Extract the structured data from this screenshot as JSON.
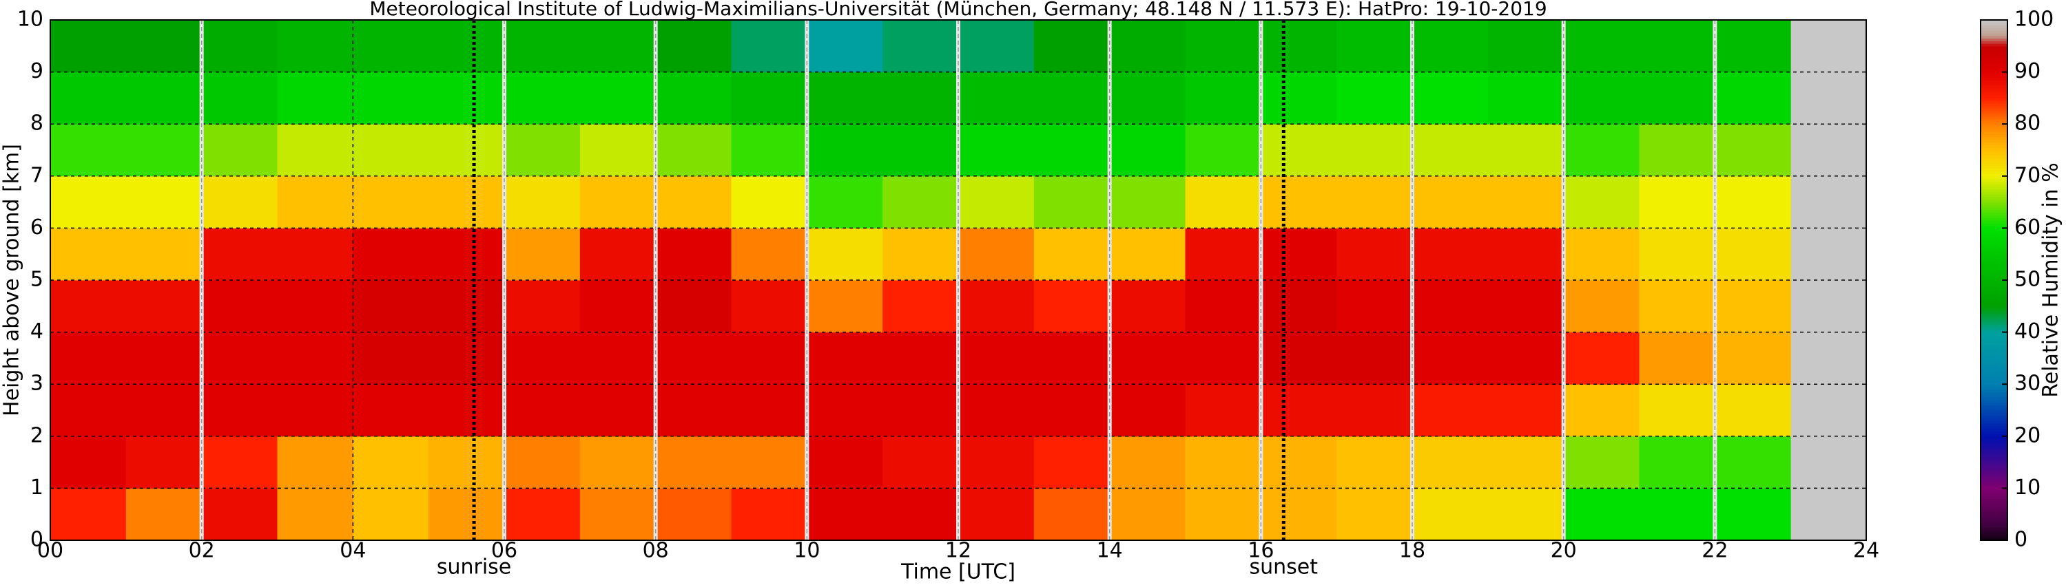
{
  "chart_data": {
    "type": "heatmap",
    "title": "Meteorological Institute of Ludwig-Maximilians-Universität (München, Germany; 48.148 N / 11.573 E):    HatPro: 19-10-2019",
    "xlabel": "Time [UTC]",
    "ylabel": "Height above ground [km]",
    "xlim": [
      0,
      24
    ],
    "ylim": [
      0,
      10
    ],
    "xticks": [
      {
        "value": 0,
        "label": "00"
      },
      {
        "value": 2,
        "label": "02"
      },
      {
        "value": 4,
        "label": "04"
      },
      {
        "value": 6,
        "label": "06"
      },
      {
        "value": 8,
        "label": "08"
      },
      {
        "value": 10,
        "label": "10"
      },
      {
        "value": 12,
        "label": "12"
      },
      {
        "value": 14,
        "label": "14"
      },
      {
        "value": 16,
        "label": "16"
      },
      {
        "value": 18,
        "label": "18"
      },
      {
        "value": 20,
        "label": "20"
      },
      {
        "value": 22,
        "label": "22"
      },
      {
        "value": 24,
        "label": "24"
      }
    ],
    "yticks": [
      0,
      1,
      2,
      3,
      4,
      5,
      6,
      7,
      8,
      9,
      10
    ],
    "grid": true,
    "missing_color": "#c8c8c8",
    "x_edges": [
      0,
      1,
      2,
      3,
      4,
      5,
      6,
      7,
      8,
      9,
      10,
      11,
      12,
      13,
      14,
      15,
      16,
      17,
      18,
      19,
      20,
      21,
      22,
      23
    ],
    "y_edges": [
      0,
      1,
      2,
      3,
      4,
      5,
      6,
      7,
      8,
      9,
      10
    ],
    "values": [
      [
        85,
        90,
        90,
        90,
        88,
        75,
        70,
        62,
        55,
        45
      ],
      [
        80,
        88,
        90,
        90,
        88,
        75,
        70,
        62,
        55,
        45
      ],
      [
        88,
        85,
        90,
        90,
        90,
        88,
        72,
        65,
        55,
        48
      ],
      [
        78,
        78,
        90,
        90,
        90,
        88,
        75,
        68,
        58,
        50
      ],
      [
        75,
        75,
        90,
        92,
        92,
        90,
        75,
        68,
        58,
        50
      ],
      [
        78,
        76,
        90,
        92,
        92,
        90,
        75,
        68,
        58,
        50
      ],
      [
        85,
        80,
        90,
        90,
        88,
        78,
        72,
        65,
        58,
        50
      ],
      [
        80,
        78,
        90,
        90,
        90,
        88,
        75,
        68,
        58,
        50
      ],
      [
        82,
        80,
        90,
        90,
        92,
        90,
        75,
        65,
        55,
        45
      ],
      [
        85,
        80,
        90,
        90,
        88,
        80,
        70,
        62,
        52,
        42
      ],
      [
        90,
        90,
        90,
        90,
        80,
        72,
        62,
        55,
        50,
        40
      ],
      [
        90,
        88,
        90,
        90,
        85,
        75,
        65,
        55,
        50,
        42
      ],
      [
        88,
        88,
        90,
        90,
        88,
        80,
        68,
        58,
        52,
        42
      ],
      [
        82,
        85,
        90,
        90,
        85,
        75,
        65,
        58,
        52,
        45
      ],
      [
        78,
        78,
        90,
        90,
        88,
        75,
        65,
        58,
        52,
        48
      ],
      [
        76,
        76,
        88,
        90,
        90,
        88,
        72,
        62,
        55,
        50
      ],
      [
        76,
        76,
        88,
        92,
        92,
        90,
        75,
        68,
        58,
        50
      ],
      [
        75,
        75,
        88,
        92,
        90,
        88,
        75,
        68,
        60,
        52
      ],
      [
        72,
        74,
        86,
        90,
        90,
        88,
        75,
        68,
        60,
        52
      ],
      [
        72,
        74,
        86,
        90,
        90,
        88,
        75,
        68,
        58,
        50
      ],
      [
        60,
        65,
        75,
        85,
        78,
        75,
        68,
        62,
        55,
        52
      ],
      [
        60,
        62,
        72,
        78,
        75,
        72,
        70,
        65,
        55,
        52
      ],
      [
        60,
        62,
        72,
        76,
        75,
        72,
        70,
        65,
        58,
        52
      ]
    ],
    "gaps": [
      2,
      6,
      8,
      10,
      12,
      14,
      16,
      18,
      20,
      22
    ],
    "annotations": [
      {
        "text": "sunrise",
        "x": 5.6
      },
      {
        "text": "sunset",
        "x": 16.3
      }
    ],
    "colorscale": [
      {
        "value": 0,
        "color": "#100010"
      },
      {
        "value": 3,
        "color": "#400040"
      },
      {
        "value": 10,
        "color": "#800070"
      },
      {
        "value": 20,
        "color": "#0010b0"
      },
      {
        "value": 30,
        "color": "#0080b0"
      },
      {
        "value": 40,
        "color": "#00a0a0"
      },
      {
        "value": 45,
        "color": "#00a000"
      },
      {
        "value": 55,
        "color": "#00c800"
      },
      {
        "value": 60,
        "color": "#00e000"
      },
      {
        "value": 65,
        "color": "#80e000"
      },
      {
        "value": 70,
        "color": "#f0f000"
      },
      {
        "value": 75,
        "color": "#ffc000"
      },
      {
        "value": 80,
        "color": "#ff8000"
      },
      {
        "value": 85,
        "color": "#ff2000"
      },
      {
        "value": 90,
        "color": "#e00000"
      },
      {
        "value": 95,
        "color": "#c80000"
      },
      {
        "value": 97,
        "color": "#c0a090"
      },
      {
        "value": 100,
        "color": "#c8c8c8"
      }
    ],
    "colorbar": {
      "label": "Relative Humidity in %",
      "lim": [
        0,
        100
      ],
      "ticks": [
        0,
        10,
        20,
        30,
        40,
        50,
        60,
        70,
        80,
        90,
        100
      ]
    }
  }
}
